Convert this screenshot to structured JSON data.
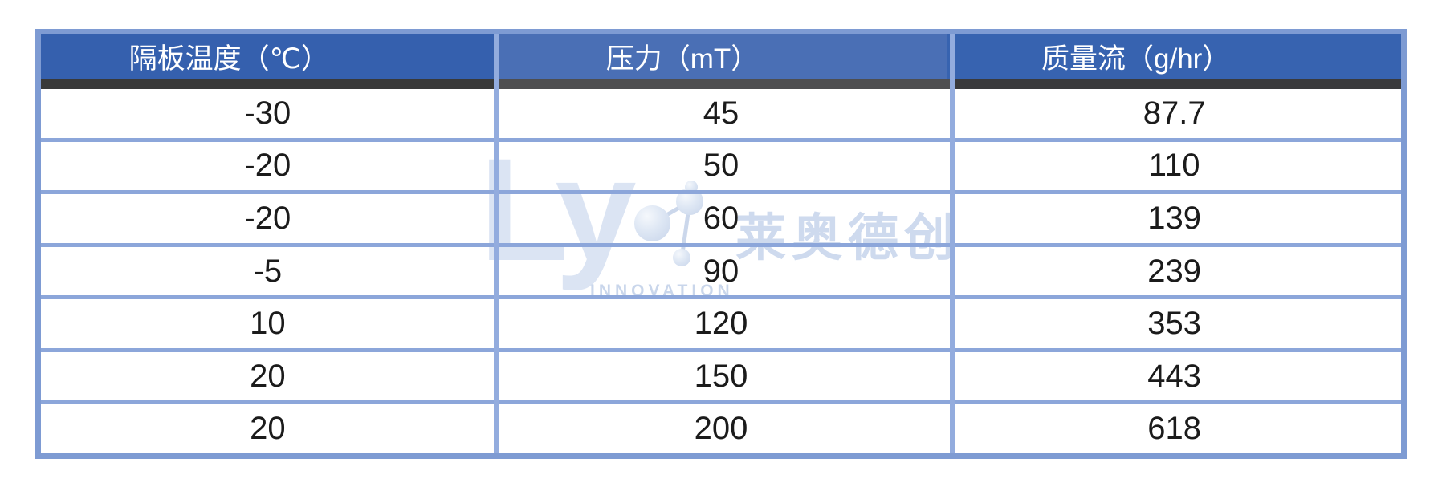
{
  "table": {
    "columns": [
      "隔板温度（℃）",
      "压力（mT）",
      "质量流（g/hr）"
    ],
    "rows": [
      [
        "-30",
        "45",
        "87.7"
      ],
      [
        "-20",
        "50",
        "110"
      ],
      [
        "-20",
        "60",
        "139"
      ],
      [
        "-5",
        "90",
        "239"
      ],
      [
        "10",
        "120",
        "353"
      ],
      [
        "20",
        "150",
        "443"
      ],
      [
        "20",
        "200",
        "618"
      ]
    ]
  },
  "watermark": {
    "brand_latin": "Ly",
    "brand_cn": "莱奥德创",
    "tagline": "INNOVATION",
    "molecule_icon": "molecule-spheres-icon"
  },
  "colors": {
    "header_bg": "#3560AE",
    "header_bg_middle": "#4A6FB5",
    "header_text": "#FFFFFF",
    "dark_band": "#3A3A3C",
    "grid_line": "#8CA6DA",
    "outer_border": "#7E9BD3",
    "body_text": "#1B1B1B",
    "watermark_blue": "#D4DFF0"
  },
  "chart_data": {
    "type": "table",
    "title": "",
    "columns": [
      "隔板温度（℃）",
      "压力（mT）",
      "质量流（g/hr）"
    ],
    "rows": [
      [
        -30,
        45,
        87.7
      ],
      [
        -20,
        50,
        110
      ],
      [
        -20,
        60,
        139
      ],
      [
        -5,
        90,
        239
      ],
      [
        10,
        120,
        353
      ],
      [
        20,
        150,
        443
      ],
      [
        20,
        200,
        618
      ]
    ]
  }
}
